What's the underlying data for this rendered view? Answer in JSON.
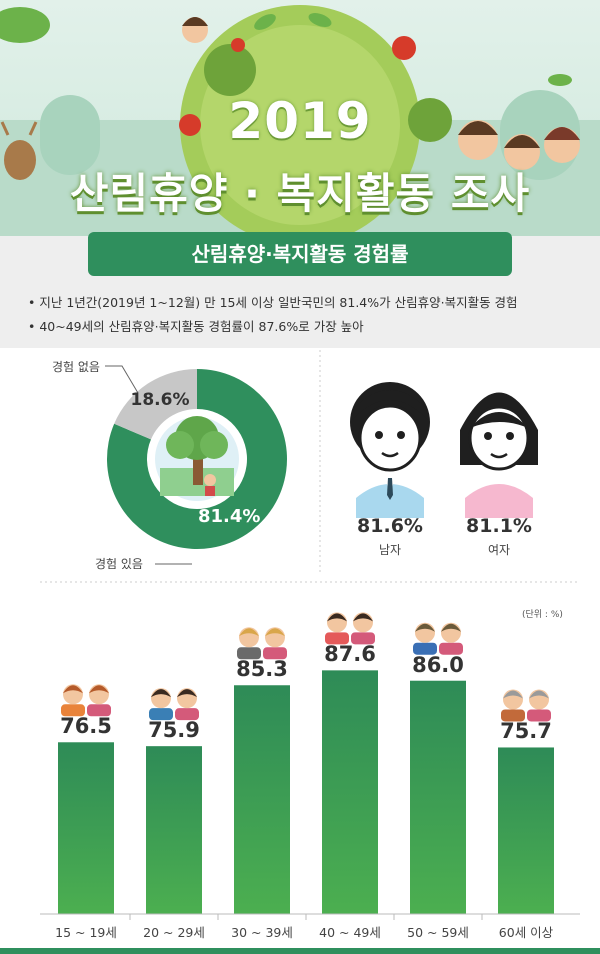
{
  "header": {
    "year": "2019",
    "title": "산림휴양 · 복지활동 조사"
  },
  "section": {
    "title": "산림휴양·복지활동 경험률",
    "bullets": [
      "• 지난 1년간(2019년 1~12월) 만 15세 이상 일반국민의 81.4%가 산림휴양·복지활동 경험",
      "• 40~49세의 산림휴양·복지활동 경험률이 87.6%로 가장 높아"
    ]
  },
  "colors": {
    "green": "#2f8f5d",
    "grey": "#c7c7c7",
    "bar_top": "#2e8b57",
    "bar_bottom": "#4caf50"
  },
  "chart_data": [
    {
      "type": "pie",
      "categories": [
        "경험 있음",
        "경험 없음"
      ],
      "values": [
        81.4,
        18.6
      ],
      "labels": [
        "81.4%",
        "18.6%"
      ]
    },
    {
      "type": "table",
      "categories": [
        "남자",
        "여자"
      ],
      "values": [
        81.6,
        81.1
      ],
      "labels": [
        "81.6%",
        "81.1%"
      ]
    },
    {
      "type": "bar",
      "categories": [
        "15 ~ 19세",
        "20 ~ 29세",
        "30 ~ 39세",
        "40 ~ 49세",
        "50 ~ 59세",
        "60세 이상"
      ],
      "values": [
        76.5,
        75.9,
        85.3,
        87.6,
        86.0,
        75.7
      ],
      "labels": [
        "76.5",
        "75.9",
        "85.3",
        "87.6",
        "86.0",
        "75.7"
      ],
      "unit_note": "(단위 : %)",
      "grid": false
    }
  ]
}
